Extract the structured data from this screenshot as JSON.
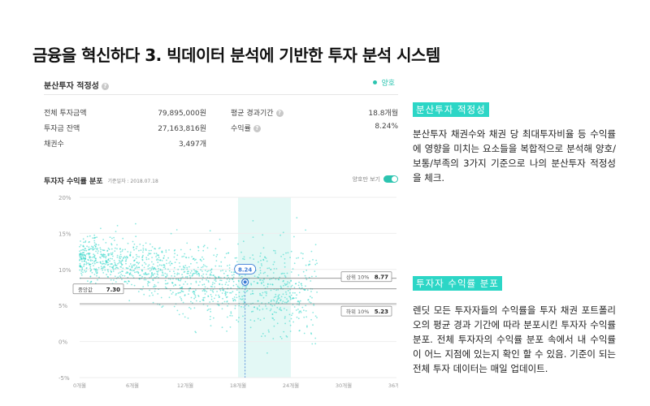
{
  "slide": {
    "title": "금융을 혁신하다 3.  빅데이터 분석에 기반한 투자 분석 시스템"
  },
  "card": {
    "title": "분산투자 적정성",
    "help_icon": "question-circle-icon",
    "status": "양호",
    "status_color": "#2cc4b0",
    "stats": [
      {
        "label": "전체 투자금액",
        "value": "79,895,000원"
      },
      {
        "label": "평균 경과기간",
        "value": "18.8개월",
        "help": true
      },
      {
        "label": "투자금 잔액",
        "value": "27,163,816원"
      },
      {
        "label": "수익률",
        "value": "8.24%",
        "help": true
      },
      {
        "label": "채권수",
        "value": "3,497개"
      }
    ]
  },
  "chart_header": {
    "title": "투자자 수익률 분포",
    "date": "기준일자 : 2018.07.18",
    "toggle_label": "양호만 보기"
  },
  "chart_data": {
    "type": "scatter",
    "title": "",
    "xlabel": "",
    "ylabel": "",
    "x_ticks": [
      "0개월",
      "6개월",
      "12개월",
      "18개월",
      "24개월",
      "30개월",
      "36개월"
    ],
    "y_ticks": [
      "20%",
      "15%",
      "10%",
      "5%",
      "0%",
      "-5%"
    ],
    "xlim": [
      0,
      36
    ],
    "ylim": [
      -5,
      20
    ],
    "grid": true,
    "point_color": "#2cd6c6",
    "highlight_band_x": [
      18,
      24
    ],
    "my_point": {
      "x": 18.8,
      "y": 8.24,
      "label": "8.24"
    },
    "median": {
      "label": "중앙값",
      "value": 7.3,
      "value_label": "7.30"
    },
    "upper_decile": {
      "label": "상위 10%",
      "value": 8.77,
      "value_label": "8.77"
    },
    "lower_decile": {
      "label": "하위 10%",
      "value": 5.23,
      "value_label": "5.23"
    }
  },
  "sections": [
    {
      "tag": "분산투자 적정성",
      "body": "분산투자 채권수와 채권 당 최대투자비율 등 수익률에 영향을 미치는 요소들을 복합적으로 분석해 양호/보통/부족의 3가지 기준으로 나의 분산투자 적정성을 체크."
    },
    {
      "tag": "투자자 수익률 분포",
      "body": "렌딧 모든 투자자들의 수익률을 투자 채권 포트폴리오의 평균 경과 기간에 따라 분포시킨 투자자 수익률 분포. 전체 투자자의 수익률 분포 속에서 내 수익률이 어느 지점에 있는지 확인 할 수 있음. 기준이 되는 전체 투자 데이터는 매일 업데이트."
    }
  ]
}
